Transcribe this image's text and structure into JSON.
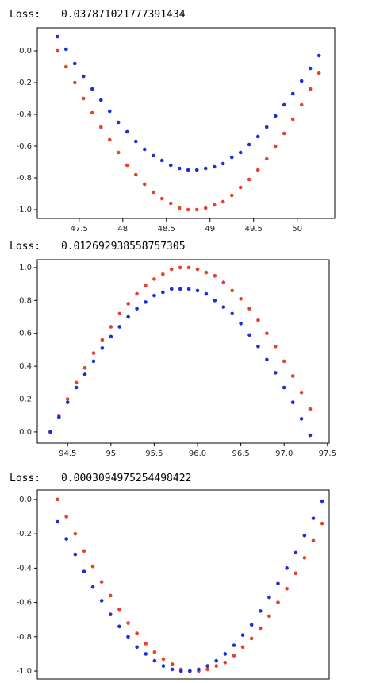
{
  "chart_data": [
    {
      "type": "scatter",
      "loss_label": "Loss:",
      "loss": "0.037871021777391434",
      "x": [
        47.25,
        47.35,
        47.45,
        47.55,
        47.65,
        47.75,
        47.85,
        47.95,
        48.05,
        48.15,
        48.25,
        48.35,
        48.45,
        48.55,
        48.65,
        48.75,
        48.85,
        48.95,
        49.05,
        49.15,
        49.25,
        49.35,
        49.45,
        49.55,
        49.65,
        49.75,
        49.85,
        49.95,
        50.05,
        50.15,
        50.25
      ],
      "series": [
        {
          "color": "#e8402a",
          "values": [
            0,
            -0.1,
            -0.2,
            -0.3,
            -0.39,
            -0.48,
            -0.56,
            -0.64,
            -0.72,
            -0.78,
            -0.84,
            -0.89,
            -0.93,
            -0.96,
            -0.99,
            -1.0,
            -1.0,
            -0.99,
            -0.97,
            -0.95,
            -0.91,
            -0.86,
            -0.81,
            -0.75,
            -0.68,
            -0.6,
            -0.52,
            -0.43,
            -0.34,
            -0.24,
            -0.14
          ]
        },
        {
          "color": "#1c2fd8",
          "values": [
            0.09,
            0.01,
            -0.08,
            -0.16,
            -0.24,
            -0.31,
            -0.38,
            -0.45,
            -0.51,
            -0.57,
            -0.62,
            -0.66,
            -0.69,
            -0.72,
            -0.74,
            -0.75,
            -0.75,
            -0.74,
            -0.73,
            -0.71,
            -0.67,
            -0.64,
            -0.59,
            -0.54,
            -0.48,
            -0.41,
            -0.34,
            -0.27,
            -0.19,
            -0.11,
            -0.03
          ]
        }
      ],
      "xlim": [
        47.02,
        50.43
      ],
      "ylim": [
        -1.055,
        0.145
      ],
      "xticks": [
        47.5,
        48.0,
        48.5,
        49.0,
        49.5,
        50.0
      ],
      "yticks": [
        {
          "value": 0,
          "label": "0.0"
        },
        -0.2,
        -0.4,
        -0.6,
        -0.8,
        {
          "value": -1,
          "label": "-1.0"
        }
      ]
    },
    {
      "type": "scatter",
      "loss_label": "Loss:",
      "loss": "0.012692938558757305",
      "x": [
        94.3,
        94.4,
        94.5,
        94.6,
        94.7,
        94.8,
        94.9,
        95.0,
        95.1,
        95.2,
        95.3,
        95.4,
        95.5,
        95.6,
        95.7,
        95.8,
        95.9,
        96.0,
        96.1,
        96.2,
        96.3,
        96.4,
        96.5,
        96.6,
        96.7,
        96.8,
        96.9,
        97.0,
        97.1,
        97.2,
        97.3
      ],
      "series": [
        {
          "color": "#e8402a",
          "values": [
            0,
            0.1,
            0.2,
            0.3,
            0.39,
            0.48,
            0.56,
            0.64,
            0.72,
            0.78,
            0.84,
            0.89,
            0.93,
            0.96,
            0.99,
            1.0,
            1.0,
            0.99,
            0.97,
            0.95,
            0.91,
            0.86,
            0.81,
            0.75,
            0.68,
            0.6,
            0.52,
            0.43,
            0.34,
            0.24,
            0.14
          ]
        },
        {
          "color": "#1c2fd8",
          "values": [
            0,
            0.09,
            0.18,
            0.27,
            0.35,
            0.43,
            0.51,
            0.58,
            0.64,
            0.7,
            0.75,
            0.79,
            0.83,
            0.85,
            0.87,
            0.87,
            0.87,
            0.86,
            0.84,
            0.8,
            0.76,
            0.72,
            0.66,
            0.59,
            0.52,
            0.44,
            0.36,
            0.27,
            0.18,
            0.08,
            -0.02
          ]
        }
      ],
      "xlim": [
        94.15,
        97.52
      ],
      "ylim": [
        -0.068,
        1.048
      ],
      "xticks": [
        94.5,
        95.0,
        95.5,
        {
          "value": 96,
          "label": "96.0"
        },
        96.5,
        {
          "value": 97,
          "label": "97.0"
        },
        97.5
      ],
      "yticks": [
        {
          "value": 0,
          "label": "0.0"
        },
        0.2,
        0.4,
        0.6,
        0.8,
        {
          "value": 1,
          "label": "1.0"
        }
      ]
    },
    {
      "type": "scatter",
      "loss_label": "Loss:",
      "loss": "0.0003094975254498422",
      "x": [
        141.4,
        141.5,
        141.6,
        141.7,
        141.8,
        141.9,
        142.0,
        142.1,
        142.2,
        142.3,
        142.4,
        142.5,
        142.6,
        142.7,
        142.8,
        142.9,
        143.0,
        143.1,
        143.2,
        143.3,
        143.4,
        143.5,
        143.6,
        143.7,
        143.8,
        143.9,
        144.0,
        144.1,
        144.2,
        144.3,
        144.4
      ],
      "series": [
        {
          "color": "#e8402a",
          "values": [
            0,
            -0.1,
            -0.2,
            -0.3,
            -0.39,
            -0.48,
            -0.56,
            -0.64,
            -0.72,
            -0.78,
            -0.84,
            -0.89,
            -0.93,
            -0.96,
            -0.99,
            -1.0,
            -1.0,
            -0.99,
            -0.97,
            -0.95,
            -0.91,
            -0.86,
            -0.81,
            -0.75,
            -0.68,
            -0.6,
            -0.52,
            -0.43,
            -0.34,
            -0.24,
            -0.14
          ]
        },
        {
          "color": "#1c2fd8",
          "values": [
            -0.13,
            -0.23,
            -0.32,
            -0.42,
            -0.51,
            -0.59,
            -0.67,
            -0.74,
            -0.8,
            -0.86,
            -0.9,
            -0.94,
            -0.97,
            -0.99,
            -1.0,
            -1.0,
            -0.99,
            -0.97,
            -0.94,
            -0.9,
            -0.85,
            -0.79,
            -0.73,
            -0.65,
            -0.57,
            -0.49,
            -0.4,
            -0.31,
            -0.21,
            -0.11,
            -0.01
          ]
        }
      ],
      "xlim": [
        141.17,
        144.48
      ],
      "ylim": [
        -1.046,
        0.055
      ],
      "yticks": [
        {
          "value": 0,
          "label": "0.0"
        },
        -0.2,
        -0.4,
        -0.6,
        -0.8,
        {
          "value": -1,
          "label": "-1.0"
        }
      ]
    }
  ]
}
